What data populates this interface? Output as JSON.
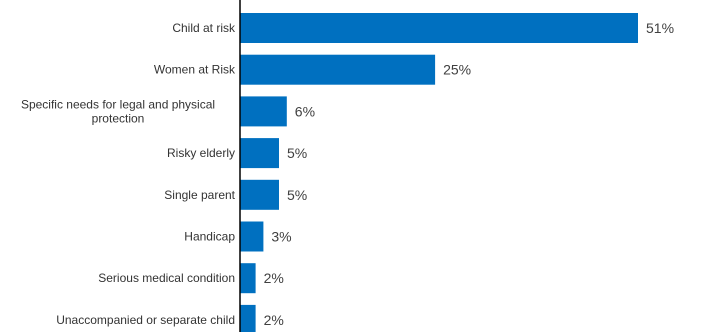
{
  "chart_data": {
    "type": "bar",
    "orientation": "horizontal",
    "categories": [
      [
        "Child at risk"
      ],
      [
        "Women at Risk"
      ],
      [
        "Specific needs for legal and physical",
        "protection"
      ],
      [
        "Risky elderly"
      ],
      [
        "Single parent"
      ],
      [
        "Handicap"
      ],
      [
        "Serious medical condition"
      ],
      [
        "Unaccompanied or separate child"
      ]
    ],
    "values": [
      51,
      25,
      6,
      5,
      5,
      3,
      2,
      2
    ],
    "value_labels": [
      "51%",
      "25%",
      "6%",
      "5%",
      "5%",
      "3%",
      "2%",
      "2%"
    ],
    "xlim": [
      0,
      51
    ],
    "bar_color": "#0070c0",
    "axis_color": "#000000",
    "grid": false,
    "legend": "none"
  }
}
